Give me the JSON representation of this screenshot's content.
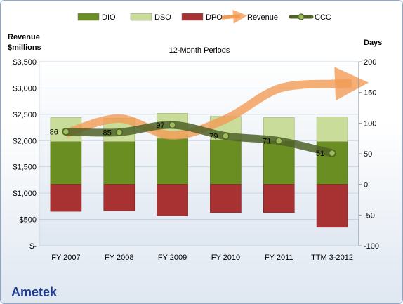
{
  "chart_data": {
    "type": "bar",
    "title": "12-Month Periods",
    "left_axis_label": [
      "Revenue",
      "$millions"
    ],
    "right_axis_label": "Days",
    "categories": [
      "FY 2007",
      "FY 2008",
      "FY 2009",
      "FY 2010",
      "FY 2011",
      "TTM 3-2012"
    ],
    "left_axis": {
      "min": 0,
      "max": 3500,
      "ticks": [
        "$-",
        "$500",
        "$1,000",
        "$1,500",
        "$2,000",
        "$2,500",
        "$3,000",
        "$3,500"
      ]
    },
    "right_axis": {
      "min": -100,
      "max": 200,
      "ticks": [
        "-100",
        "-50",
        "0",
        "50",
        "100",
        "150",
        "200"
      ]
    },
    "series": [
      {
        "name": "DIO",
        "values": [
          70,
          70,
          75,
          73,
          71,
          70
        ],
        "color": "#6b8e23"
      },
      {
        "name": "DSO",
        "values": [
          39,
          38,
          41,
          38,
          38,
          40
        ],
        "color": "#c9dc9a"
      },
      {
        "name": "DPO",
        "values": [
          -44,
          -43,
          -51,
          -46,
          -46,
          -70
        ],
        "color": "#a83232"
      },
      {
        "name": "Revenue",
        "values": [
          2140,
          2420,
          2100,
          2410,
          2990,
          3080
        ],
        "color": "#e67e22"
      },
      {
        "name": "CCC",
        "values": [
          86,
          85,
          97,
          79,
          71,
          51
        ],
        "color": "#4f6228"
      }
    ],
    "ccc_labels": [
      "86",
      "85",
      "97",
      "79",
      "71",
      "51"
    ],
    "grid": true,
    "legend": "top"
  },
  "company": "Ametek"
}
